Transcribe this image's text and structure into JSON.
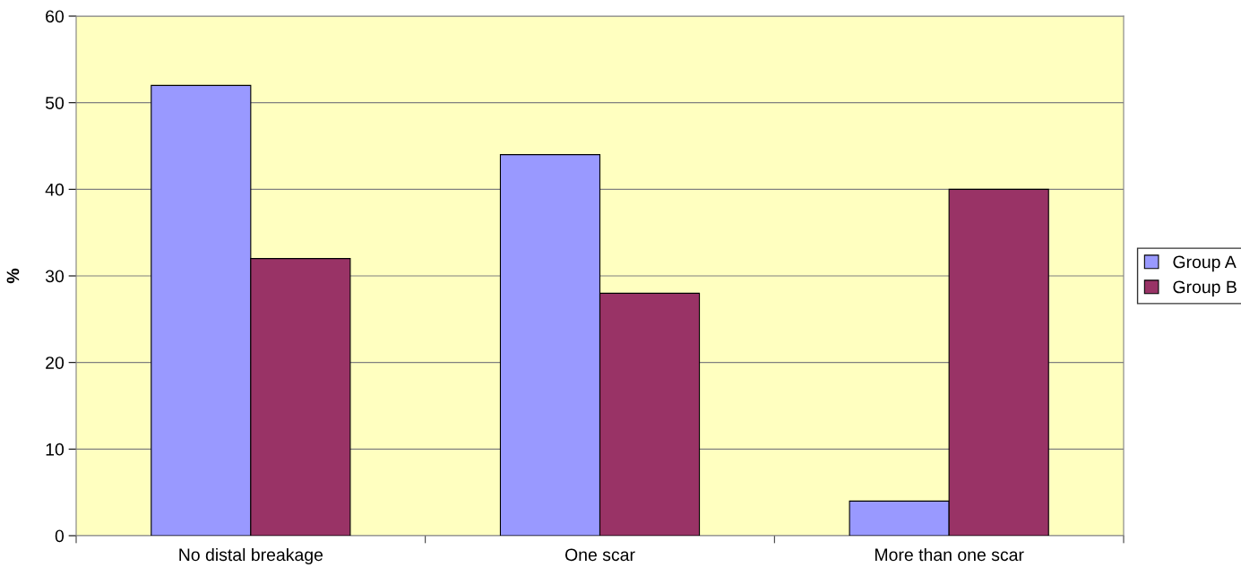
{
  "chart_data": {
    "type": "bar",
    "ylabel": "%",
    "categories": [
      "No distal breakage",
      "One scar",
      "More than one scar"
    ],
    "series": [
      {
        "name": "Group A",
        "color": "#9999ff",
        "values": [
          52,
          44,
          4
        ]
      },
      {
        "name": "Group B",
        "color": "#993366",
        "values": [
          32,
          28,
          40
        ]
      }
    ],
    "ylim": [
      0,
      60
    ],
    "yticks": [
      0,
      10,
      20,
      30,
      40,
      50,
      60
    ],
    "grid": "y",
    "legend": "right"
  }
}
